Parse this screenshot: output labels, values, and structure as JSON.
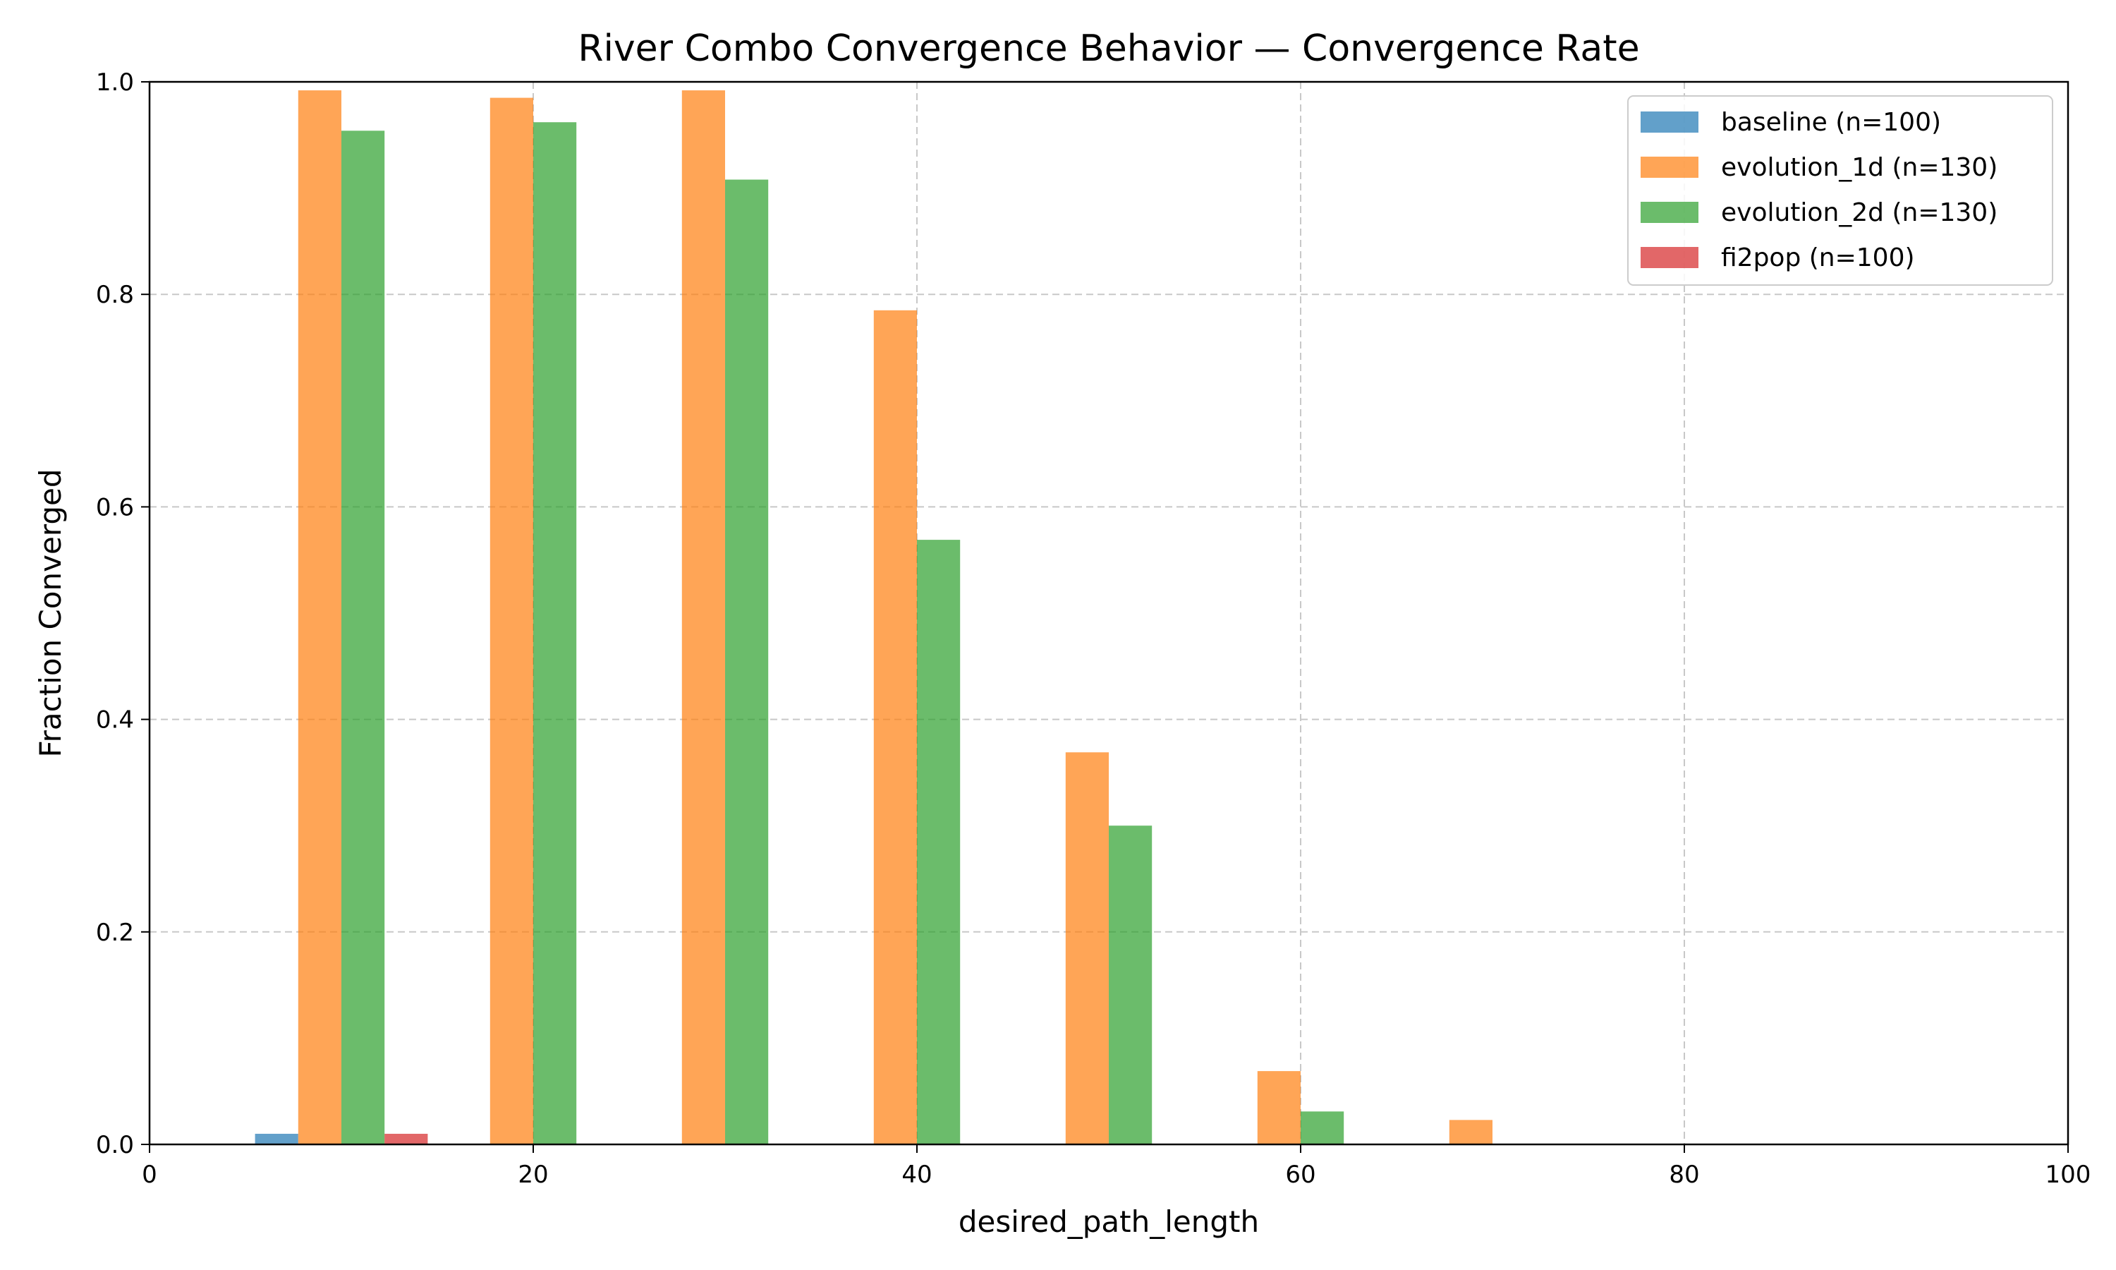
{
  "chart_data": {
    "type": "bar",
    "title": "River Combo Convergence Behavior — Convergence Rate",
    "xlabel": "desired_path_length",
    "ylabel": "Fraction Converged",
    "xlim": [
      0,
      100
    ],
    "ylim": [
      0,
      1.0
    ],
    "x_ticks": [
      0,
      20,
      40,
      60,
      80,
      100
    ],
    "y_ticks": [
      0.0,
      0.2,
      0.4,
      0.6,
      0.8,
      1.0
    ],
    "x_tick_labels": [
      "0",
      "20",
      "40",
      "60",
      "80",
      "100"
    ],
    "y_tick_labels": [
      "0.0",
      "0.2",
      "0.4",
      "0.6",
      "0.8",
      "1.0"
    ],
    "grid": true,
    "legend_position": "top-right",
    "x": [
      10,
      20,
      30,
      40,
      50,
      60,
      70,
      80,
      90
    ],
    "bar_width": 2.25,
    "series": [
      {
        "name": "baseline (n=100)",
        "color": "#1f77b4",
        "values": [
          0.01,
          0,
          0,
          0,
          0,
          0,
          0,
          0,
          0
        ]
      },
      {
        "name": "evolution_1d (n=130)",
        "color": "#ff7f0e",
        "values": [
          0.992,
          0.985,
          0.992,
          0.785,
          0.369,
          0.069,
          0.023,
          0,
          0
        ]
      },
      {
        "name": "evolution_2d (n=130)",
        "color": "#2ca02c",
        "values": [
          0.954,
          0.962,
          0.908,
          0.569,
          0.3,
          0.031,
          0,
          0,
          0
        ]
      },
      {
        "name": "fi2pop (n=100)",
        "color": "#d62728",
        "values": [
          0.01,
          0,
          0,
          0,
          0,
          0,
          0,
          0,
          0
        ]
      }
    ]
  }
}
